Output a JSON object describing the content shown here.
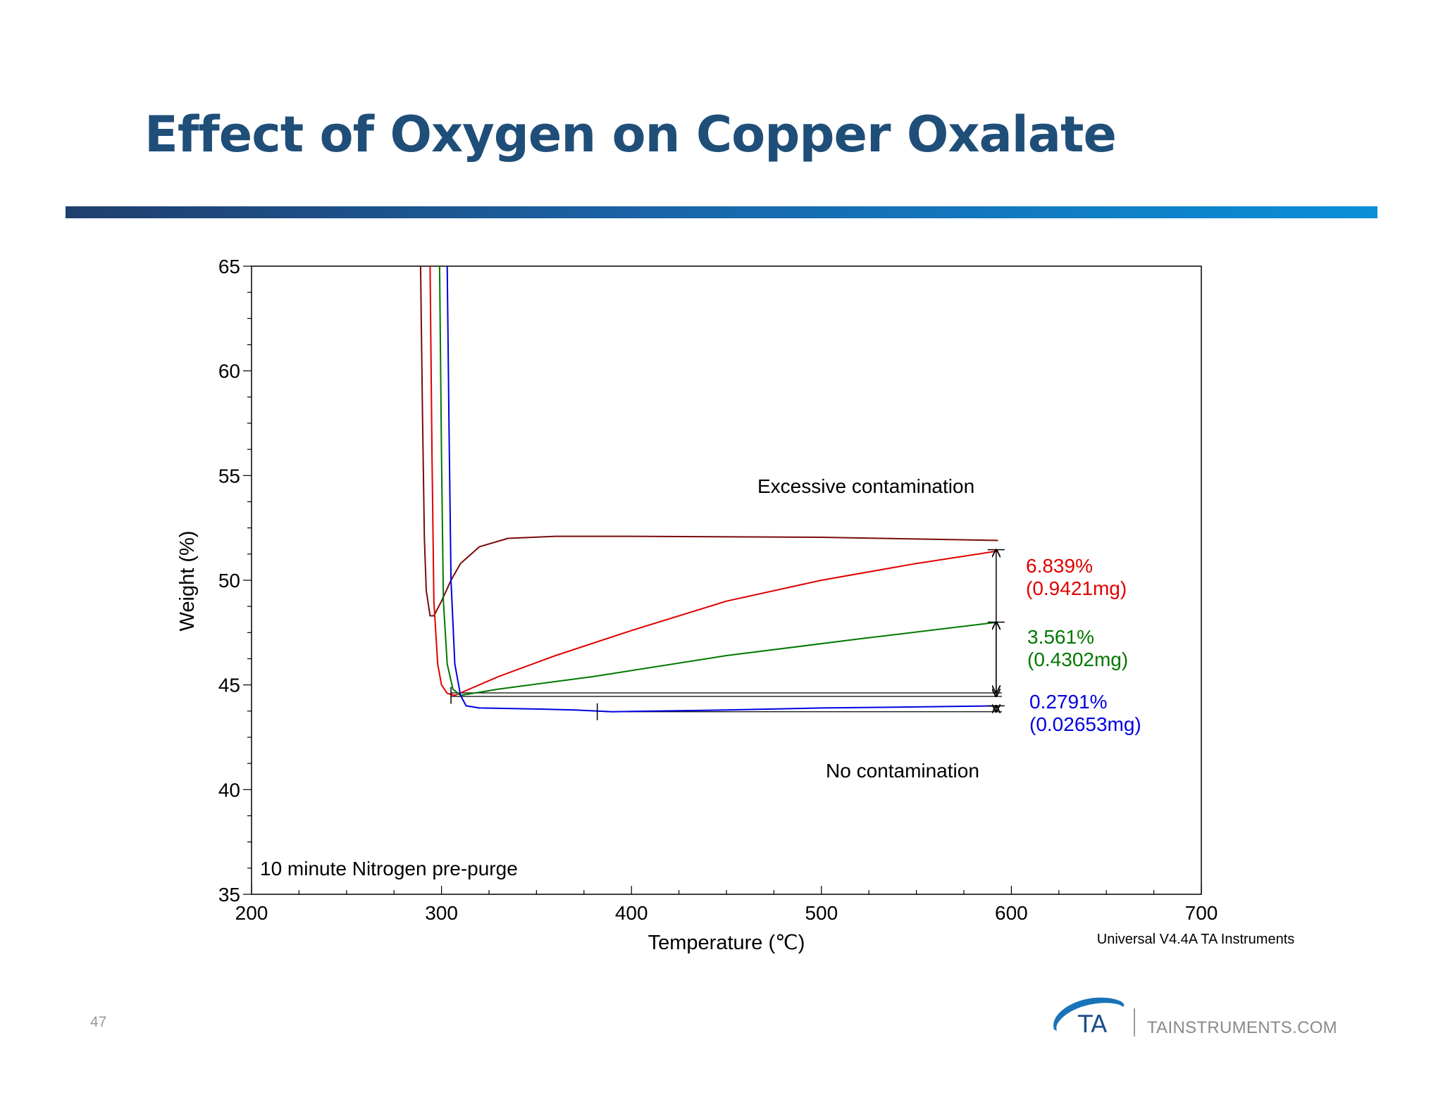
{
  "slide": {
    "title": "Effect of Oxygen on Copper Oxalate",
    "page_number": "47",
    "footer_website": "TAINSTRUMENTS.COM",
    "logo_text": "TA"
  },
  "colors": {
    "title": "#1f4e79",
    "bar_start": "#1f3f6d",
    "bar_end": "#0a8fd8",
    "dark_red": "#7a0a0a",
    "red": "#e00000",
    "green": "#007800",
    "blue": "#0000e0",
    "logo_blue": "#1a73b8"
  },
  "chart_data": {
    "type": "line",
    "xlabel": "Temperature (℃)",
    "ylabel": "Weight (%)",
    "xlim": [
      200,
      700
    ],
    "ylim": [
      35,
      65
    ],
    "x_ticks": [
      200,
      300,
      400,
      500,
      600,
      700
    ],
    "y_ticks": [
      35,
      40,
      45,
      50,
      55,
      60,
      65
    ],
    "grid": false,
    "software_note": "Universal V4.4A TA Instruments",
    "annotations": {
      "excessive": "Excessive contamination",
      "none": "No contamination",
      "purge": "10 minute Nitrogen pre-purge"
    },
    "step_labels": [
      {
        "percent": "6.839%",
        "mass": "(0.9421mg)",
        "color": "#e00000"
      },
      {
        "percent": "3.561%",
        "mass": "(0.4302mg)",
        "color": "#007800"
      },
      {
        "percent": "0.2791%",
        "mass": "(0.02653mg)",
        "color": "#0000e0"
      }
    ],
    "series": [
      {
        "color": "#7a0a0a",
        "points": [
          [
            289,
            65
          ],
          [
            290,
            58
          ],
          [
            291,
            52
          ],
          [
            292,
            49.5
          ],
          [
            294,
            48.3
          ],
          [
            296,
            48.3
          ],
          [
            300,
            49.0
          ],
          [
            305,
            50.0
          ],
          [
            310,
            50.8
          ],
          [
            320,
            51.6
          ],
          [
            335,
            52.0
          ],
          [
            360,
            52.1
          ],
          [
            400,
            52.1
          ],
          [
            500,
            52.05
          ],
          [
            593,
            51.9
          ]
        ]
      },
      {
        "color": "#e00000",
        "points": [
          [
            294,
            65
          ],
          [
            295,
            56
          ],
          [
            296,
            49
          ],
          [
            298,
            46
          ],
          [
            300,
            45.0
          ],
          [
            303,
            44.6
          ],
          [
            307,
            44.5
          ],
          [
            330,
            45.4
          ],
          [
            360,
            46.4
          ],
          [
            400,
            47.6
          ],
          [
            450,
            49.0
          ],
          [
            500,
            50.0
          ],
          [
            550,
            50.8
          ],
          [
            593,
            51.4
          ]
        ]
      },
      {
        "color": "#007800",
        "points": [
          [
            299,
            65
          ],
          [
            300,
            56
          ],
          [
            301,
            49
          ],
          [
            303,
            46
          ],
          [
            306,
            44.8
          ],
          [
            310,
            44.5
          ],
          [
            330,
            44.8
          ],
          [
            380,
            45.4
          ],
          [
            450,
            46.4
          ],
          [
            520,
            47.2
          ],
          [
            593,
            48.0
          ]
        ]
      },
      {
        "color": "#0000e0",
        "points": [
          [
            303,
            65
          ],
          [
            304,
            57
          ],
          [
            305,
            50
          ],
          [
            307,
            46
          ],
          [
            310,
            44.5
          ],
          [
            313,
            44.0
          ],
          [
            320,
            43.9
          ],
          [
            350,
            43.85
          ],
          [
            370,
            43.8
          ],
          [
            390,
            43.72
          ],
          [
            450,
            43.8
          ],
          [
            500,
            43.9
          ],
          [
            550,
            43.95
          ],
          [
            593,
            44.0
          ]
        ]
      }
    ],
    "reference_lines": [
      {
        "y": 44.62,
        "x1": 305,
        "x2": 595
      },
      {
        "y": 44.45,
        "x1": 305,
        "x2": 595
      },
      {
        "y": 43.72,
        "x1": 386,
        "x2": 595
      }
    ],
    "step_arrows": [
      {
        "x": 592,
        "y1": 51.46,
        "y2": 44.62
      },
      {
        "x": 592,
        "y1": 48.0,
        "y2": 44.45
      },
      {
        "x": 592,
        "y1": 44.0,
        "y2": 43.72
      }
    ],
    "markers": [
      {
        "x": 305,
        "y": 44.5
      },
      {
        "x": 382,
        "y": 43.72
      }
    ]
  }
}
